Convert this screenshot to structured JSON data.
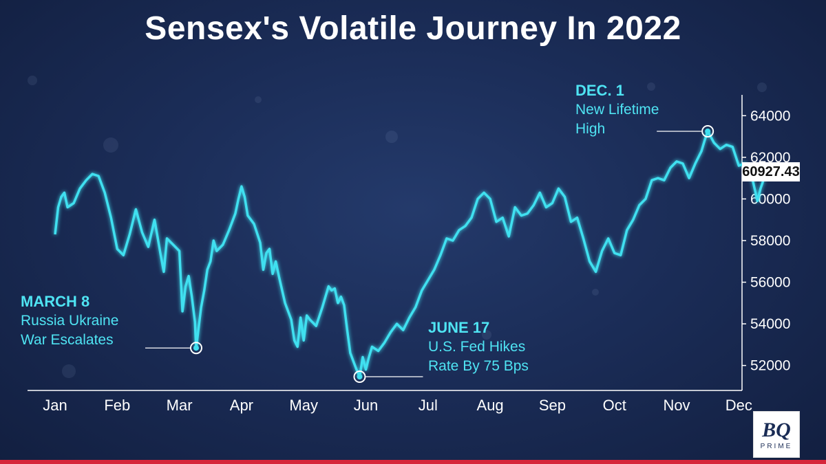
{
  "title": "Sensex's Volatile Journey In 2022",
  "chart_data": {
    "type": "line",
    "title": "Sensex's Volatile Journey In 2022",
    "x_ticks": [
      "Jan",
      "Feb",
      "Mar",
      "Apr",
      "May",
      "Jun",
      "Jul",
      "Aug",
      "Sep",
      "Oct",
      "Nov",
      "Dec"
    ],
    "y_ticks": [
      52000,
      54000,
      56000,
      58000,
      60000,
      62000,
      64000
    ],
    "ylim": [
      50800,
      65000
    ],
    "grid": false,
    "line_color": "#3fe0f0",
    "series": [
      {
        "values": [
          [
            1.0,
            58300
          ],
          [
            1.05,
            59600
          ],
          [
            1.1,
            60100
          ],
          [
            1.15,
            60300
          ],
          [
            1.2,
            59600
          ],
          [
            1.3,
            59800
          ],
          [
            1.4,
            60500
          ],
          [
            1.5,
            60900
          ],
          [
            1.6,
            61200
          ],
          [
            1.7,
            61100
          ],
          [
            1.8,
            60300
          ],
          [
            1.9,
            59100
          ],
          [
            2.0,
            57600
          ],
          [
            2.1,
            57300
          ],
          [
            2.2,
            58300
          ],
          [
            2.3,
            59500
          ],
          [
            2.4,
            58400
          ],
          [
            2.5,
            57700
          ],
          [
            2.6,
            59000
          ],
          [
            2.7,
            57300
          ],
          [
            2.75,
            56500
          ],
          [
            2.8,
            58100
          ],
          [
            2.9,
            57800
          ],
          [
            3.0,
            57500
          ],
          [
            3.05,
            54600
          ],
          [
            3.1,
            55800
          ],
          [
            3.15,
            56300
          ],
          [
            3.2,
            55300
          ],
          [
            3.25,
            54100
          ],
          [
            3.27,
            52840
          ],
          [
            3.35,
            54800
          ],
          [
            3.4,
            55600
          ],
          [
            3.45,
            56600
          ],
          [
            3.5,
            57000
          ],
          [
            3.55,
            58000
          ],
          [
            3.6,
            57500
          ],
          [
            3.7,
            57800
          ],
          [
            3.8,
            58500
          ],
          [
            3.9,
            59300
          ],
          [
            3.95,
            60000
          ],
          [
            4.0,
            60600
          ],
          [
            4.05,
            60100
          ],
          [
            4.1,
            59200
          ],
          [
            4.2,
            58800
          ],
          [
            4.3,
            57900
          ],
          [
            4.35,
            56600
          ],
          [
            4.4,
            57400
          ],
          [
            4.45,
            57600
          ],
          [
            4.5,
            56400
          ],
          [
            4.55,
            57000
          ],
          [
            4.6,
            56300
          ],
          [
            4.7,
            55000
          ],
          [
            4.8,
            54200
          ],
          [
            4.85,
            53200
          ],
          [
            4.9,
            52900
          ],
          [
            4.95,
            54300
          ],
          [
            5.0,
            53200
          ],
          [
            5.05,
            54400
          ],
          [
            5.1,
            54200
          ],
          [
            5.2,
            53900
          ],
          [
            5.3,
            54800
          ],
          [
            5.4,
            55800
          ],
          [
            5.45,
            55600
          ],
          [
            5.5,
            55700
          ],
          [
            5.55,
            55000
          ],
          [
            5.6,
            55300
          ],
          [
            5.65,
            54900
          ],
          [
            5.7,
            53700
          ],
          [
            5.75,
            52600
          ],
          [
            5.8,
            52200
          ],
          [
            5.85,
            51800
          ],
          [
            5.9,
            51460
          ],
          [
            5.95,
            52400
          ],
          [
            6.0,
            51800
          ],
          [
            6.05,
            52400
          ],
          [
            6.1,
            52900
          ],
          [
            6.2,
            52700
          ],
          [
            6.3,
            53100
          ],
          [
            6.4,
            53600
          ],
          [
            6.5,
            54000
          ],
          [
            6.6,
            53700
          ],
          [
            6.7,
            54300
          ],
          [
            6.8,
            54800
          ],
          [
            6.9,
            55600
          ],
          [
            7.0,
            56100
          ],
          [
            7.1,
            56600
          ],
          [
            7.2,
            57300
          ],
          [
            7.3,
            58100
          ],
          [
            7.4,
            58000
          ],
          [
            7.5,
            58500
          ],
          [
            7.6,
            58700
          ],
          [
            7.7,
            59100
          ],
          [
            7.8,
            60000
          ],
          [
            7.9,
            60300
          ],
          [
            8.0,
            60000
          ],
          [
            8.1,
            58900
          ],
          [
            8.2,
            59100
          ],
          [
            8.3,
            58200
          ],
          [
            8.4,
            59600
          ],
          [
            8.5,
            59200
          ],
          [
            8.6,
            59300
          ],
          [
            8.7,
            59700
          ],
          [
            8.8,
            60300
          ],
          [
            8.9,
            59600
          ],
          [
            9.0,
            59800
          ],
          [
            9.1,
            60500
          ],
          [
            9.2,
            60100
          ],
          [
            9.3,
            58900
          ],
          [
            9.4,
            59100
          ],
          [
            9.5,
            58100
          ],
          [
            9.6,
            57000
          ],
          [
            9.7,
            56500
          ],
          [
            9.8,
            57500
          ],
          [
            9.9,
            58100
          ],
          [
            10.0,
            57400
          ],
          [
            10.1,
            57300
          ],
          [
            10.2,
            58500
          ],
          [
            10.3,
            59000
          ],
          [
            10.4,
            59700
          ],
          [
            10.5,
            60000
          ],
          [
            10.6,
            60900
          ],
          [
            10.7,
            61000
          ],
          [
            10.8,
            60900
          ],
          [
            10.9,
            61500
          ],
          [
            11.0,
            61800
          ],
          [
            11.1,
            61700
          ],
          [
            11.2,
            61000
          ],
          [
            11.3,
            61700
          ],
          [
            11.4,
            62300
          ],
          [
            11.45,
            62800
          ],
          [
            11.5,
            63250
          ],
          [
            11.6,
            62700
          ],
          [
            11.7,
            62400
          ],
          [
            11.8,
            62600
          ],
          [
            11.9,
            62500
          ],
          [
            12.0,
            61600
          ],
          [
            12.1,
            61700
          ],
          [
            12.2,
            61200
          ],
          [
            12.3,
            59900
          ],
          [
            12.35,
            60500
          ],
          [
            12.4,
            60927
          ]
        ]
      }
    ],
    "current_value_label": "60927.43",
    "annotations": [
      {
        "x": 3.27,
        "y": 52840,
        "head": "MARCH 8",
        "lines": [
          "Russia Ukraine",
          "War Escalates"
        ],
        "position": "left"
      },
      {
        "x": 5.9,
        "y": 51460,
        "head": "JUNE 17",
        "lines": [
          "U.S. Fed Hikes",
          "Rate By 75 Bps"
        ],
        "position": "right"
      },
      {
        "x": 11.5,
        "y": 63250,
        "head": "DEC. 1",
        "lines": [
          "New Lifetime",
          "High"
        ],
        "position": "left"
      }
    ]
  },
  "logo": {
    "bq": "BQ",
    "prime": "PRIME"
  }
}
